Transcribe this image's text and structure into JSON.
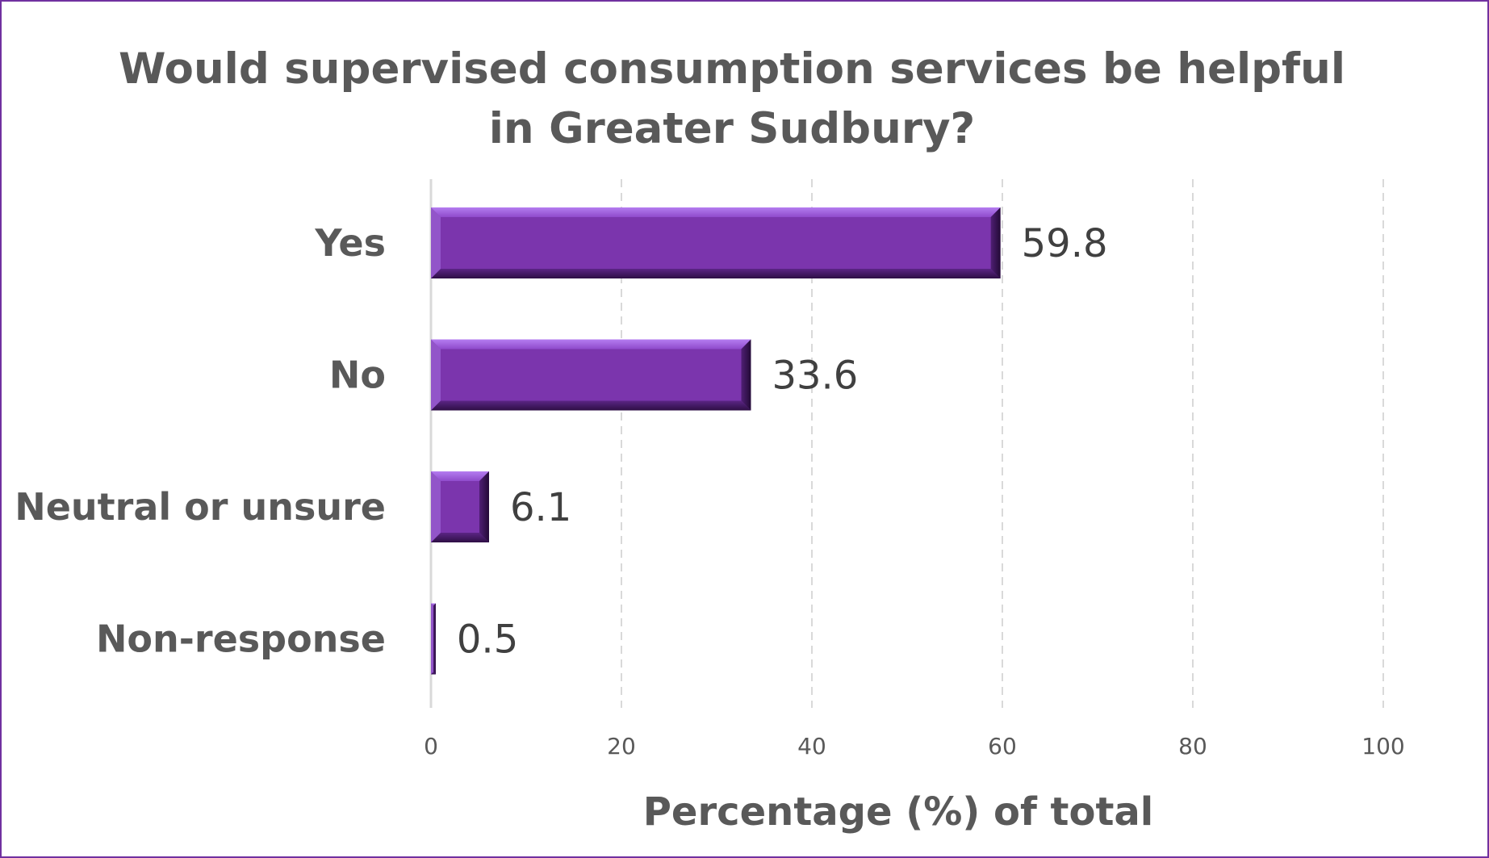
{
  "colors": {
    "frame": "#7030a0",
    "bar": "#7b35ad",
    "bar_highlight": "#a66fe0",
    "bar_shadow": "#3d1657",
    "text": "#595959",
    "value_text": "#404040",
    "grid": "#d9d9d9"
  },
  "chart_data": {
    "type": "bar",
    "orientation": "horizontal",
    "title": "Would supervised consumption services be helpful in Greater Sudbury?",
    "title_lines": [
      "Would supervised consumption services be helpful",
      "in Greater Sudbury?"
    ],
    "categories": [
      "Yes",
      "No",
      "Neutral or unsure",
      "Non-response"
    ],
    "values": [
      59.8,
      33.6,
      6.1,
      0.5
    ],
    "data_labels": [
      "59.8",
      "33.6",
      "6.1",
      "0.5"
    ],
    "xlabel": "Percentage (%) of total",
    "ylabel": "",
    "xlim": [
      0,
      100
    ],
    "xticks": [
      0,
      20,
      40,
      60,
      80,
      100
    ],
    "xtick_labels": [
      "0",
      "20",
      "40",
      "60",
      "80",
      "100"
    ],
    "grid": true,
    "legend": "none"
  }
}
